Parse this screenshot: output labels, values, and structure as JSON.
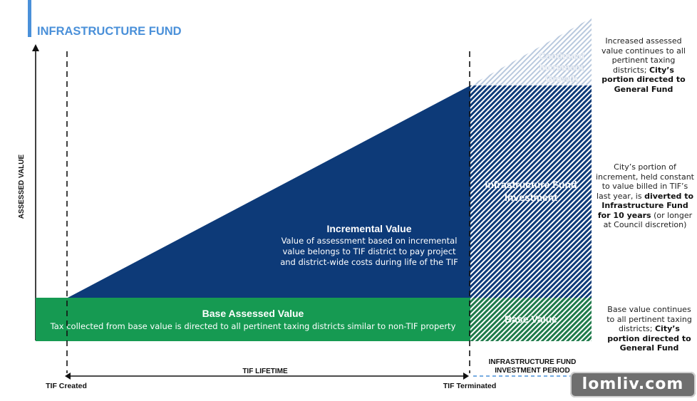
{
  "header": {
    "title": "INFRASTRUCTURE FUND"
  },
  "axis": {
    "ylabel": "ASSESSED VALUE"
  },
  "regions": {
    "incremental": {
      "title": "Incremental Value",
      "lines": [
        "Value of assessment based on incremental",
        "value belongs to TIF district to pay project",
        "and district-wide costs during life of the TIF"
      ]
    },
    "base": {
      "title": "Base Assessed Value",
      "line": "Tax collected from base value is directed to all pertinent taxing districts similar to non-TIF property"
    },
    "growth": {
      "lines": [
        "Continued",
        "Increment",
        "Growth"
      ]
    },
    "investment": {
      "lines": [
        "Infrastructure Fund",
        "Investment"
      ]
    },
    "base_value": {
      "label": "Base Value"
    }
  },
  "timeline": {
    "start": "TIF Created",
    "end": "TIF Terminated",
    "lifetime": "TIF LIFETIME",
    "period_lines": [
      "INFRASTRUCTURE FUND",
      "INVESTMENT PERIOD"
    ]
  },
  "notes": {
    "top": {
      "a": "Increased assessed value continues to all pertinent taxing districts;",
      "b": "City’s portion directed to General Fund"
    },
    "middle": {
      "a": "City’s portion of increment, held constant to value billed in TIF’s last year, is",
      "b": "diverted to Infrastructure Fund for 10 years",
      "c": "(or longer at Council discretion)"
    },
    "bottom": {
      "a": "Base value continues to all pertinent taxing districts;",
      "b": "City’s portion directed to General Fund"
    }
  },
  "watermark": {
    "text": "lomliv.com"
  },
  "colors": {
    "accent": "#4a90d9",
    "navy": "#0d3a78",
    "green": "#169a52",
    "hatch_green": "#1f7a4a",
    "hatch_navy": "#0d3a78"
  }
}
